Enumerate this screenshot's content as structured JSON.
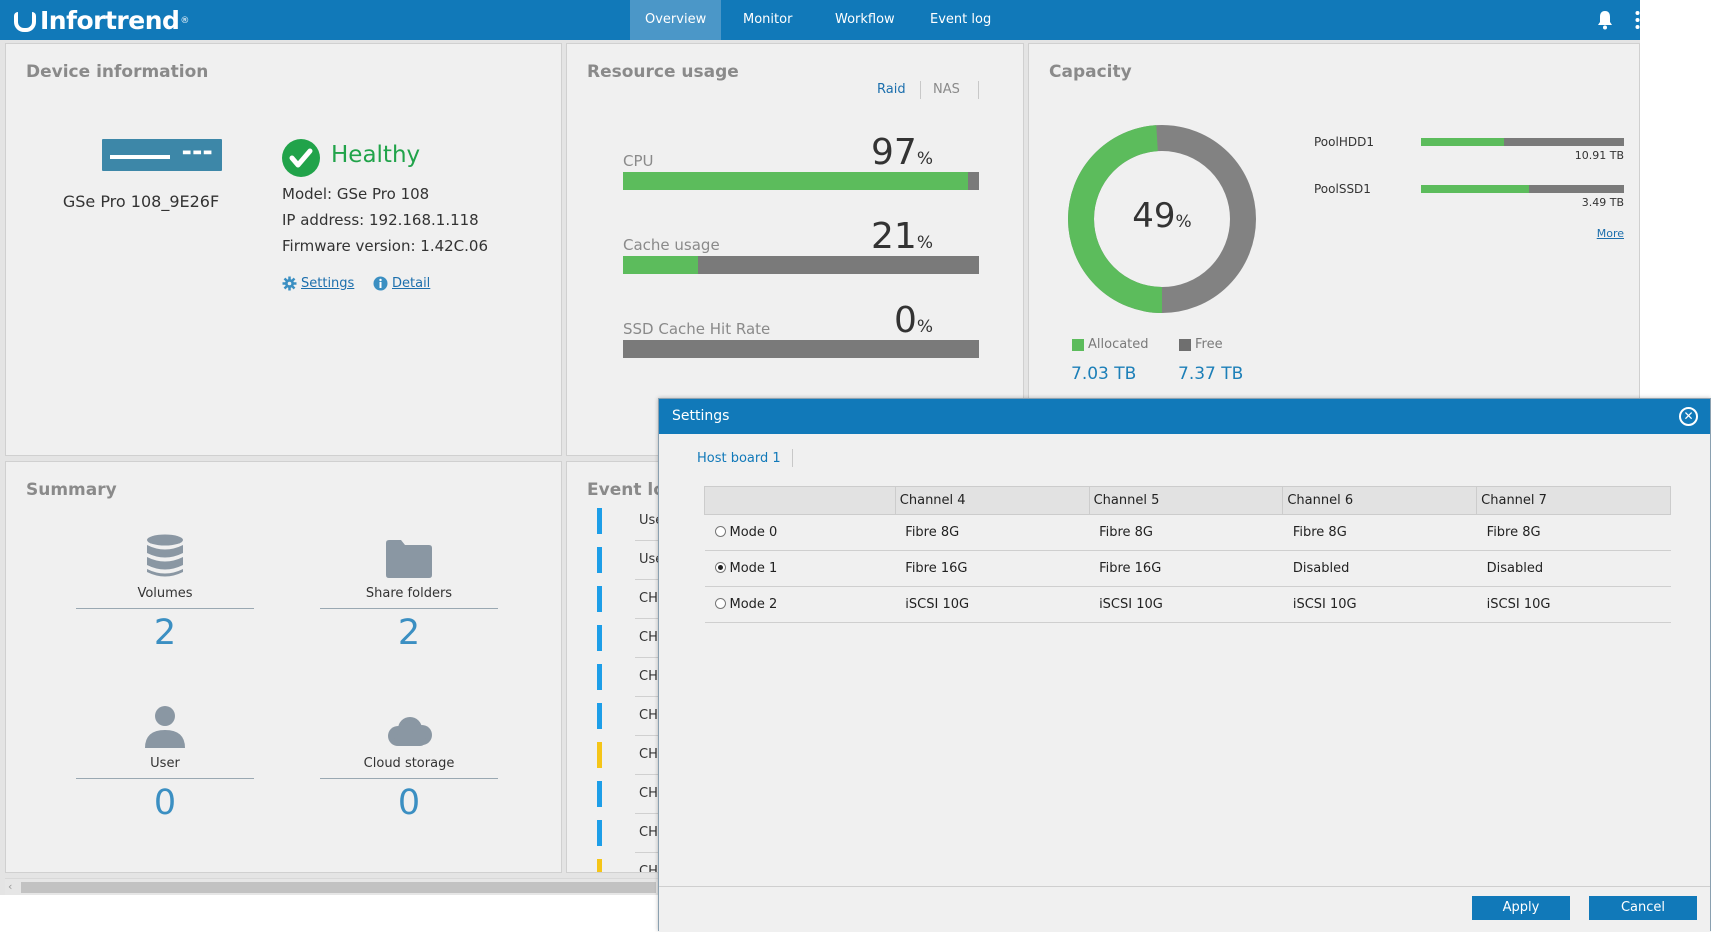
{
  "brand": {
    "name": "Infortrend",
    "mark": "®"
  },
  "nav": {
    "tabs": [
      {
        "label": "Overview",
        "active": true
      },
      {
        "label": "Monitor",
        "active": false
      },
      {
        "label": "Workflow",
        "active": false
      },
      {
        "label": "Event log",
        "active": false
      }
    ]
  },
  "device": {
    "title": "Device information",
    "name": "GSe Pro 108_9E26F",
    "status": "Healthy",
    "model": "Model: GSe Pro 108",
    "ip": "IP address: 192.168.1.118",
    "firmware": "Firmware version: 1.42C.06",
    "settings_link": "Settings",
    "detail_link": "Detail"
  },
  "resource": {
    "title": "Resource usage",
    "tabs": [
      "Raid",
      "NAS"
    ],
    "metrics": [
      {
        "label": "CPU",
        "value": "97",
        "unit": "%",
        "fraction": 0.97
      },
      {
        "label": "Cache usage",
        "value": "21",
        "unit": "%",
        "fraction": 0.21
      },
      {
        "label": "SSD Cache Hit Rate",
        "value": "0",
        "unit": "%",
        "fraction": 0.0
      }
    ]
  },
  "capacity": {
    "title": "Capacity",
    "percent": "49",
    "percent_unit": "%",
    "allocated_fraction": 0.49,
    "allocated_label": "Allocated",
    "allocated_value": "7.03 TB",
    "free_label": "Free",
    "free_value": "7.37 TB",
    "colors": {
      "allocated": "#5cbc5c",
      "free": "#828282"
    },
    "pools": [
      {
        "name": "PoolHDD1",
        "size": "10.91 TB",
        "fraction": 0.41
      },
      {
        "name": "PoolSSD1",
        "size": "3.49 TB",
        "fraction": 0.53
      }
    ],
    "more": "More"
  },
  "summary": {
    "title": "Summary",
    "items": [
      {
        "label": "Volumes",
        "value": "2",
        "icon": "database-icon"
      },
      {
        "label": "Share folders",
        "value": "2",
        "icon": "folder-icon"
      },
      {
        "label": "User",
        "value": "0",
        "icon": "user-icon"
      },
      {
        "label": "Cloud storage",
        "value": "0",
        "icon": "cloud-icon"
      }
    ]
  },
  "eventlog": {
    "title": "Event log",
    "rows": [
      {
        "text": "Use",
        "color": "#1d9ee8"
      },
      {
        "text": "Use",
        "color": "#1d9ee8"
      },
      {
        "text": "CHA",
        "color": "#1d9ee8"
      },
      {
        "text": "CHA",
        "color": "#1d9ee8"
      },
      {
        "text": "CHA",
        "color": "#1d9ee8"
      },
      {
        "text": "CHA",
        "color": "#1d9ee8"
      },
      {
        "text": "CHA",
        "color": "#f5c518"
      },
      {
        "text": "CHA",
        "color": "#1d9ee8"
      },
      {
        "text": "CHA",
        "color": "#1d9ee8"
      },
      {
        "text": "CHA",
        "color": "#f5c518"
      }
    ]
  },
  "dialog": {
    "title": "Settings",
    "tab": "Host board 1",
    "columns": [
      "",
      "Channel 4",
      "Channel 5",
      "Channel 6",
      "Channel 7"
    ],
    "rows": [
      {
        "mode": "Mode 0",
        "selected": false,
        "cells": [
          "Fibre 8G",
          "Fibre 8G",
          "Fibre 8G",
          "Fibre 8G"
        ]
      },
      {
        "mode": "Mode 1",
        "selected": true,
        "cells": [
          "Fibre 16G",
          "Fibre 16G",
          "Disabled",
          "Disabled"
        ]
      },
      {
        "mode": "Mode 2",
        "selected": false,
        "cells": [
          "iSCSI 10G",
          "iSCSI 10G",
          "iSCSI 10G",
          "iSCSI 10G"
        ]
      }
    ],
    "apply": "Apply",
    "cancel": "Cancel"
  }
}
